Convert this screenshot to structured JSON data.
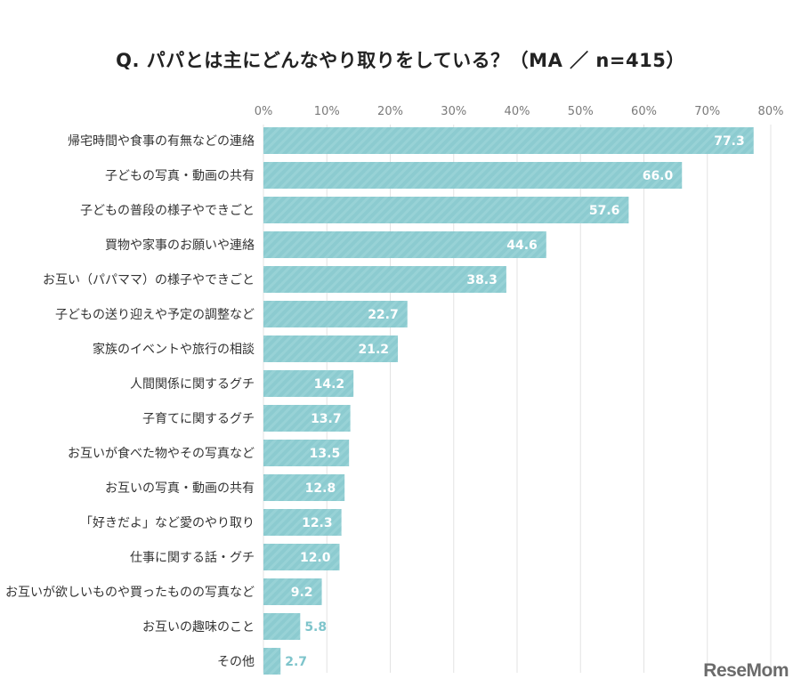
{
  "chart_data": {
    "type": "bar",
    "orientation": "horizontal",
    "title": "Q. パパとは主にどんなやり取りをしている？（MA ／ n=415）",
    "xlim": [
      0,
      80
    ],
    "x_ticks": [
      "0%",
      "10%",
      "20%",
      "30%",
      "40%",
      "50%",
      "60%",
      "70%",
      "80%"
    ],
    "grid": true,
    "bar_color": "#8ccbd0",
    "categories": [
      "帰宅時間や食事の有無などの連絡",
      "子どもの写真・動画の共有",
      "子どもの普段の様子やできごと",
      "買物や家事のお願いや連絡",
      "お互い（パパママ）の様子やできごと",
      "子どもの送り迎えや予定の調整など",
      "家族のイベントや旅行の相談",
      "人間関係に関するグチ",
      "子育てに関するグチ",
      "お互いが食べた物やその写真など",
      "お互いの写真・動画の共有",
      "「好きだよ」など愛のやり取り",
      "仕事に関する話・グチ",
      "お互いが欲しいものや買ったものの写真など",
      "お互いの趣味のこと",
      "その他"
    ],
    "values": [
      77.3,
      66.0,
      57.6,
      44.6,
      38.3,
      22.7,
      21.2,
      14.2,
      13.7,
      13.5,
      12.8,
      12.3,
      12.0,
      9.2,
      5.8,
      2.7
    ],
    "value_labels": [
      "77.3",
      "66.0",
      "57.6",
      "44.6",
      "38.3",
      "22.7",
      "21.2",
      "14.2",
      "13.7",
      "13.5",
      "12.8",
      "12.3",
      "12.0",
      "9.2",
      "5.8",
      "2.7"
    ]
  },
  "watermark": "ReseMom"
}
